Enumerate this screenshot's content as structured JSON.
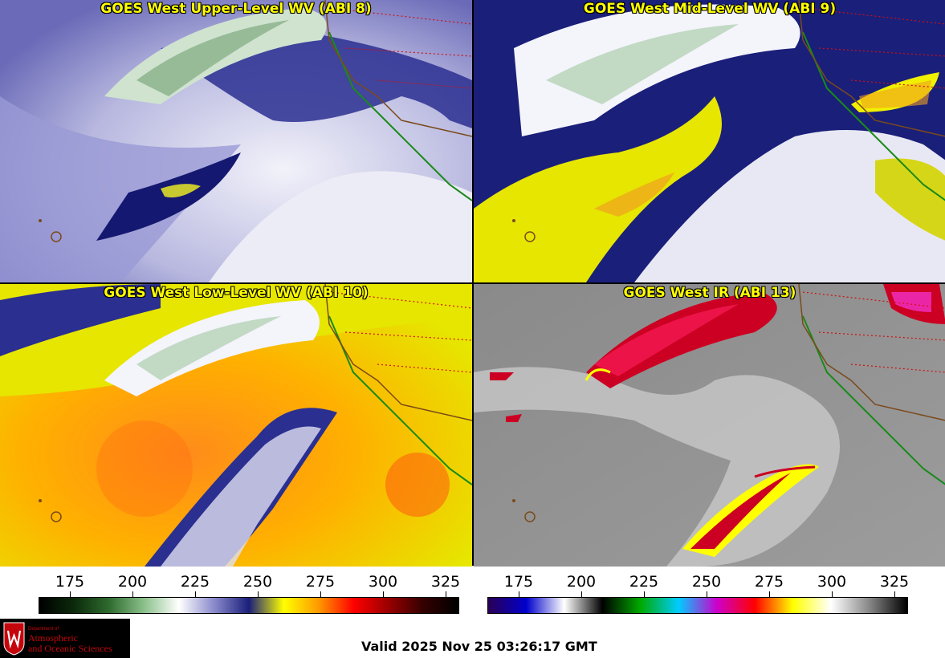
{
  "panels": [
    {
      "title": "GOES West Upper-Level WV (ABI 8)"
    },
    {
      "title": "GOES West Mid-Level WV (ABI 9)"
    },
    {
      "title": "GOES West Low-Level WV (ABI 10)"
    },
    {
      "title": "GOES West IR (ABI 13)"
    }
  ],
  "colorbars": [
    {
      "name": "wv",
      "ticks": [
        "175",
        "200",
        "225",
        "250",
        "275",
        "300",
        "325"
      ],
      "stops": [
        "#000000",
        "#0b2a0b",
        "#2f6b2f",
        "#8bc08b",
        "#ffffff",
        "#8a8acc",
        "#1a1f7a",
        "#ffff00",
        "#ff9900",
        "#ff0000",
        "#990000",
        "#330000",
        "#000000"
      ]
    },
    {
      "name": "ir",
      "ticks": [
        "175",
        "200",
        "225",
        "250",
        "275",
        "300",
        "325"
      ],
      "stops": [
        "#2a0055",
        "#0000cc",
        "#ffffff",
        "#000000",
        "#00aa00",
        "#00ccff",
        "#cc00cc",
        "#ff0000",
        "#ffff00",
        "#ffffff",
        "#888888",
        "#000000"
      ]
    }
  ],
  "logo": {
    "dept": "Department of",
    "line1": "Atmospheric",
    "line2": "and Oceanic Sciences"
  },
  "valid": "Valid 2025 Nov 25 03:26:17 GMT"
}
